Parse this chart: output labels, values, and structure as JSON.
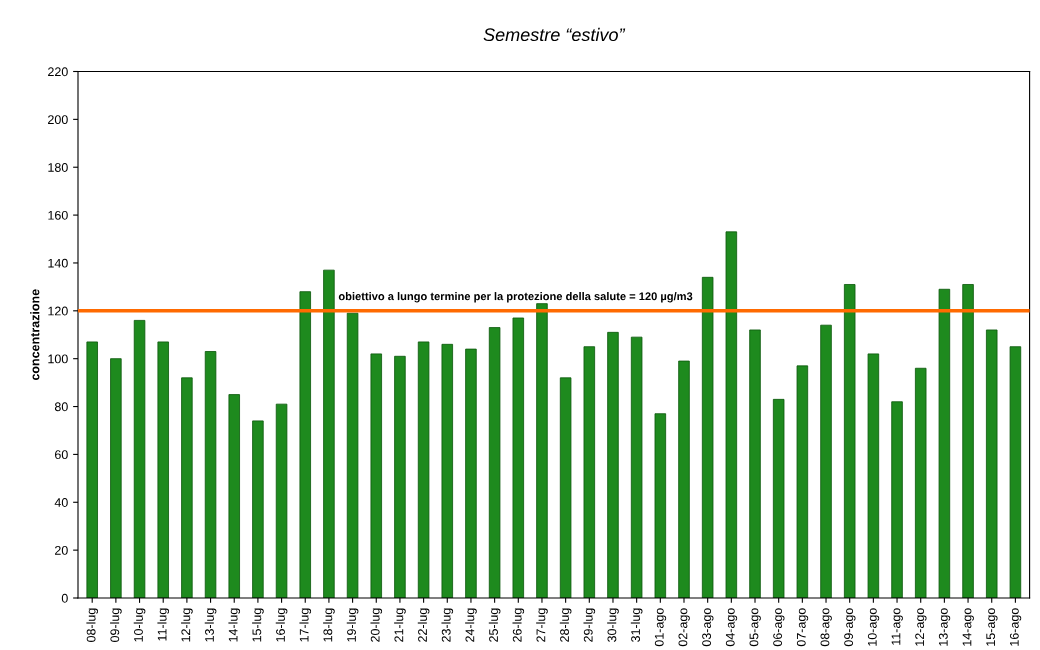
{
  "chart_data": {
    "type": "bar",
    "title": "Semestre “estivo”",
    "ylabel": "concentrazione",
    "categories": [
      "08-lug",
      "09-lug",
      "10-lug",
      "11-lug",
      "12-lug",
      "13-lug",
      "14-lug",
      "15-lug",
      "16-lug",
      "17-lug",
      "18-lug",
      "19-lug",
      "20-lug",
      "21-lug",
      "22-lug",
      "23-lug",
      "24-lug",
      "25-lug",
      "26-lug",
      "27-lug",
      "28-lug",
      "29-lug",
      "30-lug",
      "31-lug",
      "01-ago",
      "02-ago",
      "03-ago",
      "04-ago",
      "05-ago",
      "06-ago",
      "07-ago",
      "08-ago",
      "09-ago",
      "10-ago",
      "11-ago",
      "12-ago",
      "13-ago",
      "14-ago",
      "15-ago",
      "16-ago"
    ],
    "values": [
      107,
      100,
      116,
      107,
      92,
      103,
      85,
      74,
      81,
      128,
      137,
      119,
      102,
      101,
      107,
      106,
      104,
      113,
      117,
      123,
      92,
      105,
      111,
      109,
      77,
      99,
      134,
      153,
      112,
      83,
      97,
      114,
      131,
      102,
      82,
      96,
      129,
      131,
      112,
      105
    ],
    "color": "#1e8a1e",
    "ylim": [
      0,
      220
    ],
    "yticks": [
      0,
      20,
      40,
      60,
      80,
      100,
      120,
      140,
      160,
      180,
      200,
      220
    ],
    "ref_lines": [
      {
        "axis": "y",
        "value": 120,
        "label": "obiettivo a lungo termine per la protezione della salute = 120 µg/m3",
        "color": "#ff6a00"
      }
    ],
    "grid": false,
    "legend": false
  }
}
